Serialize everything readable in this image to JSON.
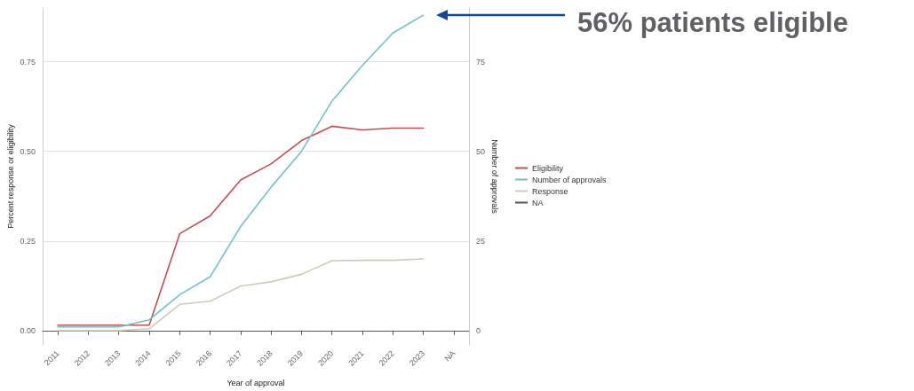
{
  "chart_data": {
    "type": "line",
    "xlabel": "Year of approval",
    "ylabel": "Percent response or eligibility",
    "y2label": "Number of approvals",
    "categories": [
      "2011",
      "2012",
      "2013",
      "2014",
      "2015",
      "2016",
      "2017",
      "2018",
      "2019",
      "2020",
      "2021",
      "2022",
      "2023",
      "NA"
    ],
    "series": [
      {
        "name": "Eligibility",
        "color": "#c44e52",
        "values": [
          0.015,
          0.015,
          0.015,
          0.015,
          0.27,
          0.32,
          0.42,
          0.465,
          0.53,
          0.57,
          0.56,
          0.565,
          0.565,
          null
        ]
      },
      {
        "name": "Number of approvals",
        "color": "#6cc3c9",
        "axis": "y2",
        "values": [
          1,
          1,
          1,
          3,
          10,
          15,
          29,
          40,
          50,
          64,
          74,
          83,
          88,
          null
        ]
      },
      {
        "name": "Response",
        "color": "#cfcbb8",
        "values": [
          0,
          0,
          0,
          0.005,
          0.073,
          0.082,
          0.124,
          0.136,
          0.157,
          0.195,
          0.196,
          0.196,
          0.2,
          null
        ]
      },
      {
        "name": "NA",
        "color": "#555555",
        "values": [
          null,
          null,
          null,
          null,
          null,
          null,
          null,
          null,
          null,
          null,
          null,
          null,
          null,
          null
        ]
      }
    ],
    "ylim": [
      -0.04,
      0.9
    ],
    "yticks": [
      {
        "value": 0,
        "label": "0.00"
      },
      {
        "value": 0.25,
        "label": "0.25"
      },
      {
        "value": 0.5,
        "label": "0.50"
      },
      {
        "value": 0.75,
        "label": "0.75"
      }
    ],
    "y2lim": [
      -4,
      90
    ],
    "y2ticks": [
      0,
      25,
      50,
      75
    ],
    "grid": "y",
    "legend": "right",
    "marker": "none",
    "line_style": "solid",
    "annotations": [
      "56% patients eligible"
    ]
  }
}
